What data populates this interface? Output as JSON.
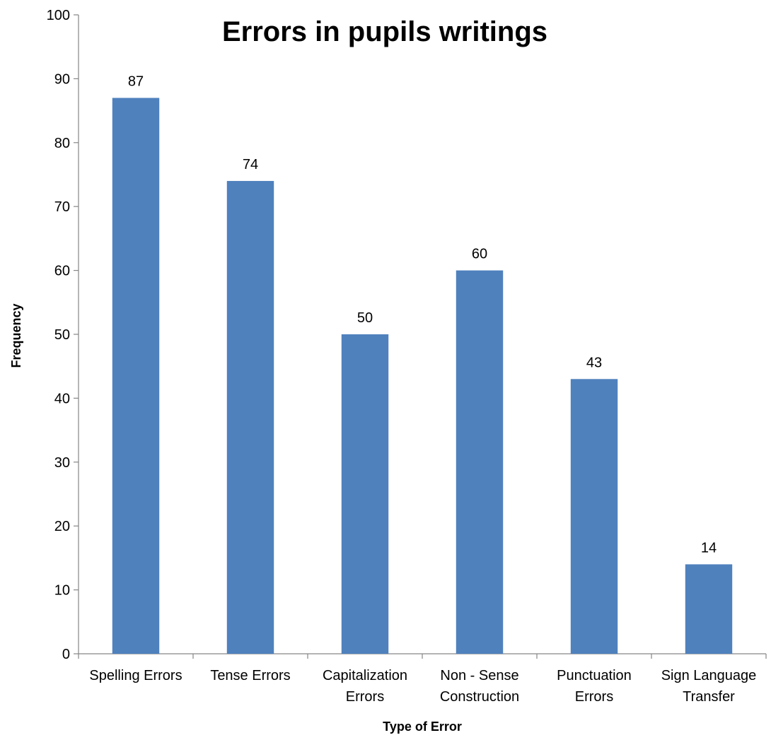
{
  "chart_data": {
    "type": "bar",
    "title": "Errors in pupils writings",
    "xlabel": "Type of Error",
    "ylabel": "Frequency",
    "ylim": [
      0,
      100
    ],
    "yticks": [
      0,
      10,
      20,
      30,
      40,
      50,
      60,
      70,
      80,
      90,
      100
    ],
    "categories": [
      [
        "Spelling Errors"
      ],
      [
        "Tense Errors"
      ],
      [
        "Capitalization",
        "Errors"
      ],
      [
        "Non - Sense",
        "Construction"
      ],
      [
        "Punctuation",
        "Errors"
      ],
      [
        "Sign Language",
        "Transfer"
      ]
    ],
    "values": [
      87,
      74,
      50,
      60,
      43,
      14
    ],
    "bar_color": "#4F81BD",
    "grid": false,
    "legend": "none"
  }
}
